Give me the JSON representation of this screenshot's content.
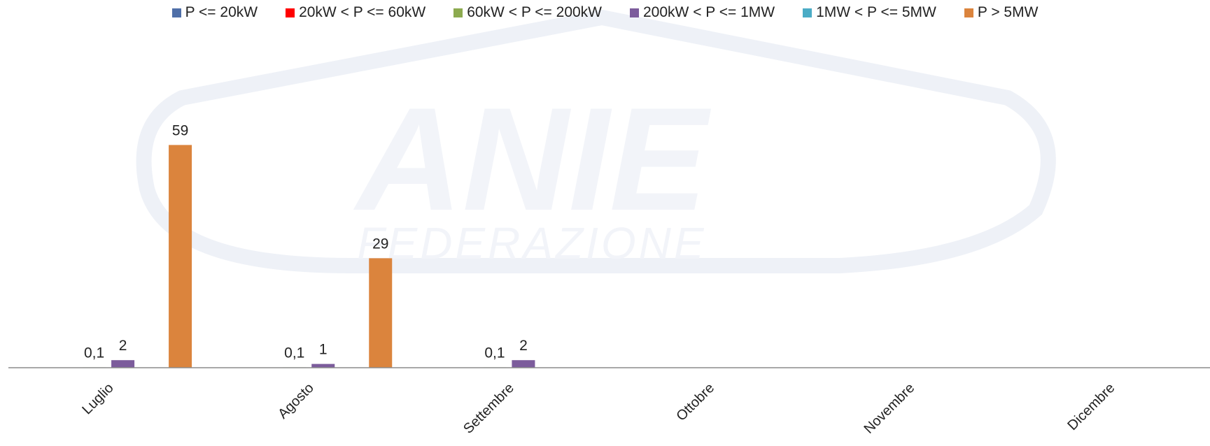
{
  "chart_data": {
    "type": "bar",
    "categories": [
      "Luglio",
      "Agosto",
      "Settembre",
      "Ottobre",
      "Novembre",
      "Dicembre"
    ],
    "series": [
      {
        "name": "P <= 20kW",
        "color": "#4f6fa8",
        "values": [
          null,
          null,
          null,
          null,
          null,
          null
        ]
      },
      {
        "name": "20kW < P <= 60kW",
        "color": "#ff0000",
        "values": [
          null,
          null,
          null,
          null,
          null,
          null
        ]
      },
      {
        "name": "60kW < P <= 200kW",
        "color": "#8caa4f",
        "values": [
          0.1,
          0.1,
          0.1,
          null,
          null,
          null
        ]
      },
      {
        "name": "200kW < P <= 1MW",
        "color": "#7c5c9c",
        "values": [
          2,
          1,
          2,
          null,
          null,
          null
        ]
      },
      {
        "name": "1MW < P <= 5MW",
        "color": "#4bacc6",
        "values": [
          null,
          null,
          null,
          null,
          null,
          null
        ]
      },
      {
        "name": "P > 5MW",
        "color": "#db843d",
        "values": [
          59,
          29,
          null,
          null,
          null,
          null
        ]
      }
    ],
    "data_labels": [
      {
        "series": 2,
        "category": 0,
        "text": "0,1"
      },
      {
        "series": 3,
        "category": 0,
        "text": "2"
      },
      {
        "series": 5,
        "category": 0,
        "text": "59"
      },
      {
        "series": 2,
        "category": 1,
        "text": "0,1"
      },
      {
        "series": 3,
        "category": 1,
        "text": "1"
      },
      {
        "series": 5,
        "category": 1,
        "text": "29"
      },
      {
        "series": 2,
        "category": 2,
        "text": "0,1"
      },
      {
        "series": 3,
        "category": 2,
        "text": "2"
      }
    ],
    "ylim": [
      0,
      66
    ],
    "legend_position": "top-center",
    "grid": false,
    "watermark_text": [
      "ANIE",
      "FEDERAZIONE"
    ]
  }
}
